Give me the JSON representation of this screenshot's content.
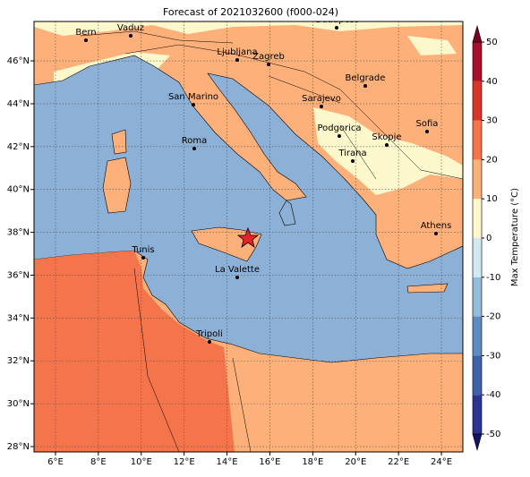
{
  "title": "Forecast of 2021032600 (f000-024)",
  "map": {
    "xlim": [
      5,
      25
    ],
    "ylim": [
      27.75,
      47.84
    ],
    "xticks": [
      {
        "value": 6,
        "label": "6°E"
      },
      {
        "value": 8,
        "label": "8°E"
      },
      {
        "value": 10,
        "label": "10°E"
      },
      {
        "value": 12,
        "label": "12°E"
      },
      {
        "value": 14,
        "label": "14°E"
      },
      {
        "value": 16,
        "label": "16°E"
      },
      {
        "value": 18,
        "label": "18°E"
      },
      {
        "value": 20,
        "label": "20°E"
      },
      {
        "value": 22,
        "label": "22°E"
      },
      {
        "value": 24,
        "label": "24°E"
      }
    ],
    "yticks": [
      {
        "value": 28,
        "label": "28°N"
      },
      {
        "value": 30,
        "label": "30°N"
      },
      {
        "value": 32,
        "label": "32°N"
      },
      {
        "value": 34,
        "label": "34°N"
      },
      {
        "value": 36,
        "label": "36°N"
      },
      {
        "value": 38,
        "label": "38°N"
      },
      {
        "value": 40,
        "label": "40°N"
      },
      {
        "value": 42,
        "label": "42°N"
      },
      {
        "value": 44,
        "label": "44°N"
      },
      {
        "value": 46,
        "label": "46°N"
      }
    ],
    "grid": true,
    "cities": [
      "Bern",
      "Vaduz",
      "Budapest",
      "Ljubljana",
      "Zagreb",
      "Belgrade",
      "Sarajevo",
      "San Marino",
      "Sofia",
      "Podgorica",
      "Skopje",
      "Roma",
      "Tirana",
      "Athens",
      "Tunis",
      "La Valette",
      "Tripoli"
    ]
  },
  "colorbar": {
    "label": "Max Temperature (°C)",
    "ticks": [
      -50,
      -40,
      -30,
      -20,
      -10,
      0,
      10,
      20,
      30,
      40,
      50
    ],
    "colors": [
      "#2b3491",
      "#3d62aa",
      "#5d8cc0",
      "#93bcdb",
      "#cfe8f2",
      "#fdf8cc",
      "#fdb07a",
      "#f4744c",
      "#d8352a",
      "#a8102a"
    ],
    "under_color": "#141466",
    "over_color": "#7a0020"
  }
}
